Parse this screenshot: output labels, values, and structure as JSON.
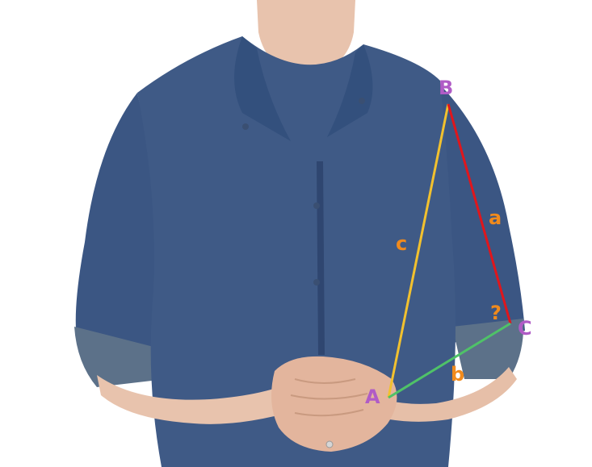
{
  "labels": {
    "vertex_a": "A",
    "vertex_b": "B",
    "vertex_c": "C",
    "side_a": "a",
    "side_b": "b",
    "side_c": "c",
    "angle_unknown": "?"
  },
  "colors": {
    "vertex_label": "#b05cc6",
    "side_label": "#f08a1c",
    "side_a_line": "#e0161c",
    "side_b_line": "#4fc268",
    "side_c_line": "#f2c12e",
    "shirt": "#3f5a86",
    "shirt_dark": "#2f4670",
    "undershirt": "#4f78ac",
    "skin": "#e8c3ad",
    "background": "#ffffff"
  },
  "icons": {
    "person": "person-illustration"
  }
}
